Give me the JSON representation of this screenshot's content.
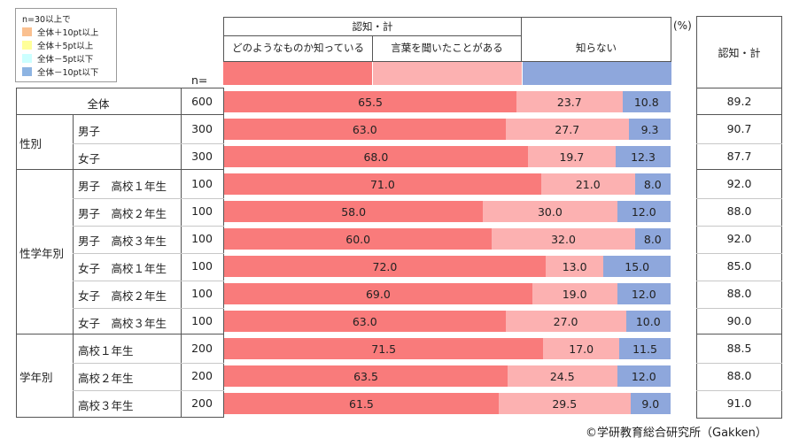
{
  "legend": {
    "title": "n=30以上で",
    "items": [
      {
        "label": "全体＋10pt以上",
        "color": "#fac090"
      },
      {
        "label": "全体＋5pt以上",
        "color": "#ffff99"
      },
      {
        "label": "全体－5pt以下",
        "color": "#ccffff"
      },
      {
        "label": "全体－10pt以下",
        "color": "#8db4e2"
      }
    ]
  },
  "header": {
    "group_label": "認知・計",
    "col1": "どのようなものか知っている",
    "col2": "言葉を聞いたことがある",
    "col3": "知らない",
    "percent": "(%)",
    "total_label": "認知・計",
    "n_label": "n="
  },
  "groups": {
    "sex": "性別",
    "sex_grade": "性学年別",
    "grade": "学年別"
  },
  "credit": "©学研教育総合研究所（Gakken）",
  "colors": {
    "know": "#f97b7b",
    "heard": "#fcb1b1",
    "unknown": "#8ea7dc"
  },
  "chart_data": {
    "type": "bar",
    "stacked": true,
    "orientation": "horizontal",
    "title": "認知・計",
    "unit": "%",
    "series_names": [
      "どのようなものか知っている",
      "言葉を聞いたことがある",
      "知らない"
    ],
    "rows": [
      {
        "label": "全体",
        "n": "600",
        "values": [
          65.5,
          23.7,
          10.8
        ],
        "total": "89.2"
      },
      {
        "label": "男子",
        "n": "300",
        "values": [
          63.0,
          27.7,
          9.3
        ],
        "total": "90.7"
      },
      {
        "label": "女子",
        "n": "300",
        "values": [
          68.0,
          19.7,
          12.3
        ],
        "total": "87.7"
      },
      {
        "label": "男子　高校１年生",
        "n": "100",
        "values": [
          71.0,
          21.0,
          8.0
        ],
        "total": "92.0"
      },
      {
        "label": "男子　高校２年生",
        "n": "100",
        "values": [
          58.0,
          30.0,
          12.0
        ],
        "total": "88.0"
      },
      {
        "label": "男子　高校３年生",
        "n": "100",
        "values": [
          60.0,
          32.0,
          8.0
        ],
        "total": "92.0"
      },
      {
        "label": "女子　高校１年生",
        "n": "100",
        "values": [
          72.0,
          13.0,
          15.0
        ],
        "total": "85.0"
      },
      {
        "label": "女子　高校２年生",
        "n": "100",
        "values": [
          69.0,
          19.0,
          12.0
        ],
        "total": "88.0"
      },
      {
        "label": "女子　高校３年生",
        "n": "100",
        "values": [
          63.0,
          27.0,
          10.0
        ],
        "total": "90.0"
      },
      {
        "label": "高校１年生",
        "n": "200",
        "values": [
          71.5,
          17.0,
          11.5
        ],
        "total": "88.5"
      },
      {
        "label": "高校２年生",
        "n": "200",
        "values": [
          63.5,
          24.5,
          12.0
        ],
        "total": "88.0"
      },
      {
        "label": "高校３年生",
        "n": "200",
        "values": [
          61.5,
          29.5,
          9.0
        ],
        "total": "91.0"
      }
    ]
  }
}
